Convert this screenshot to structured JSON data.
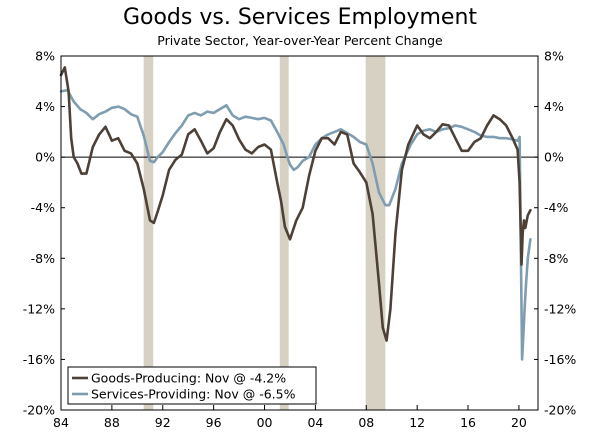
{
  "chart_data": {
    "type": "line",
    "title": "Goods vs. Services Employment",
    "subtitle": "Private Sector, Year-over-Year Percent Change",
    "xlim": [
      1984,
      2021.5
    ],
    "ylim": [
      -20,
      8
    ],
    "y_ticks": [
      8,
      4,
      0,
      -4,
      -8,
      -12,
      -16,
      -20
    ],
    "y_tick_labels_left": [
      "8%",
      "4%",
      "0%",
      "-4%",
      "-8%",
      "-12%",
      "-16%",
      "-20%"
    ],
    "y_tick_labels_right": [
      "8%",
      "4%",
      "0%",
      "-4%",
      "-8%",
      "-12%",
      "-16%",
      "-20%"
    ],
    "x_ticks": [
      1984,
      1988,
      1992,
      1996,
      2000,
      2004,
      2008,
      2012,
      2016,
      2020
    ],
    "x_tick_labels": [
      "84",
      "88",
      "92",
      "96",
      "00",
      "04",
      "08",
      "12",
      "16",
      "20"
    ],
    "recessions": [
      [
        1990.5,
        1991.25
      ],
      [
        2001.2,
        2001.9
      ],
      [
        2007.95,
        2009.5
      ]
    ],
    "legend": {
      "placement": "bottom-left",
      "entries": [
        "Goods-Producing: Nov @ -4.2%",
        "Services-Providing: Nov @ -6.5%"
      ]
    },
    "series": [
      {
        "name": "Goods-Producing",
        "color": "#4d4037",
        "x": [
          1984.0,
          1984.3,
          1984.6,
          1984.8,
          1985.0,
          1985.3,
          1985.6,
          1986.0,
          1986.5,
          1987.0,
          1987.5,
          1988.0,
          1988.5,
          1989.0,
          1989.5,
          1990.0,
          1990.5,
          1991.0,
          1991.3,
          1991.6,
          1992.0,
          1992.5,
          1993.0,
          1993.5,
          1994.0,
          1994.5,
          1995.0,
          1995.5,
          1996.0,
          1996.5,
          1997.0,
          1997.5,
          1998.0,
          1998.5,
          1999.0,
          1999.5,
          2000.0,
          2000.5,
          2001.0,
          2001.3,
          2001.6,
          2002.0,
          2002.5,
          2003.0,
          2003.5,
          2004.0,
          2004.5,
          2005.0,
          2005.5,
          2006.0,
          2006.5,
          2007.0,
          2007.5,
          2008.0,
          2008.5,
          2009.0,
          2009.3,
          2009.6,
          2009.9,
          2010.3,
          2010.8,
          2011.3,
          2012.0,
          2012.5,
          2013.0,
          2013.5,
          2014.0,
          2014.5,
          2015.0,
          2015.5,
          2016.0,
          2016.5,
          2017.0,
          2017.5,
          2018.0,
          2018.5,
          2019.0,
          2019.5,
          2019.9,
          2020.05,
          2020.2,
          2020.3,
          2020.4,
          2020.5,
          2020.7,
          2020.9
        ],
        "values": [
          6.5,
          7.1,
          5.2,
          1.5,
          0.0,
          -0.5,
          -1.3,
          -1.3,
          0.8,
          1.8,
          2.4,
          1.3,
          1.5,
          0.5,
          0.3,
          -0.5,
          -2.5,
          -5.0,
          -5.2,
          -4.3,
          -3.0,
          -1.0,
          -0.2,
          0.2,
          1.8,
          2.2,
          1.3,
          0.3,
          0.7,
          2.0,
          3.0,
          2.5,
          1.4,
          0.6,
          0.3,
          0.8,
          1.0,
          0.6,
          -2.0,
          -3.5,
          -5.5,
          -6.5,
          -5.0,
          -4.0,
          -1.5,
          0.5,
          1.5,
          1.5,
          1.0,
          2.0,
          1.8,
          -0.5,
          -1.2,
          -2.0,
          -4.5,
          -10.0,
          -13.5,
          -14.5,
          -12.0,
          -6.0,
          -1.0,
          1.0,
          2.5,
          1.8,
          1.5,
          2.0,
          2.6,
          2.5,
          1.5,
          0.5,
          0.5,
          1.2,
          1.5,
          2.5,
          3.3,
          3.0,
          2.5,
          1.5,
          0.6,
          -2.0,
          -8.5,
          -6.0,
          -5.0,
          -5.6,
          -4.6,
          -4.2
        ]
      },
      {
        "name": "Services-Providing",
        "color": "#7f9db0",
        "x": [
          1984.0,
          1984.5,
          1985.0,
          1985.5,
          1986.0,
          1986.5,
          1987.0,
          1987.5,
          1988.0,
          1988.5,
          1989.0,
          1989.5,
          1990.0,
          1990.5,
          1990.8,
          1991.0,
          1991.3,
          1991.6,
          1992.0,
          1992.5,
          1993.0,
          1993.5,
          1994.0,
          1994.5,
          1995.0,
          1995.5,
          1996.0,
          1996.5,
          1997.0,
          1997.5,
          1998.0,
          1998.5,
          1999.0,
          1999.5,
          2000.0,
          2000.5,
          2001.0,
          2001.5,
          2001.8,
          2002.0,
          2002.3,
          2002.6,
          2003.0,
          2003.5,
          2004.0,
          2004.5,
          2005.0,
          2005.5,
          2006.0,
          2006.5,
          2007.0,
          2007.5,
          2008.0,
          2008.5,
          2009.0,
          2009.5,
          2009.8,
          2010.3,
          2010.8,
          2011.5,
          2012.0,
          2012.5,
          2013.0,
          2013.5,
          2014.0,
          2014.5,
          2015.0,
          2015.5,
          2016.0,
          2016.5,
          2017.0,
          2017.5,
          2018.0,
          2018.5,
          2019.0,
          2019.5,
          2019.9,
          2020.05,
          2020.15,
          2020.25,
          2020.35,
          2020.45,
          2020.55,
          2020.7,
          2020.9
        ],
        "values": [
          5.2,
          5.3,
          4.4,
          3.8,
          3.5,
          3.0,
          3.4,
          3.6,
          3.9,
          4.0,
          3.8,
          3.4,
          3.2,
          1.7,
          0.5,
          -0.3,
          -0.4,
          0.0,
          0.4,
          1.2,
          1.9,
          2.5,
          3.3,
          3.5,
          3.3,
          3.6,
          3.5,
          3.8,
          4.1,
          3.3,
          3.0,
          3.2,
          3.1,
          3.0,
          3.1,
          2.9,
          2.0,
          1.0,
          0.0,
          -0.6,
          -1.0,
          -0.8,
          -0.3,
          0.0,
          1.0,
          1.5,
          1.8,
          2.0,
          2.2,
          1.9,
          1.6,
          1.2,
          1.0,
          -0.5,
          -2.8,
          -3.8,
          -3.8,
          -2.5,
          -0.5,
          1.0,
          1.8,
          2.1,
          2.2,
          2.0,
          2.2,
          2.3,
          2.5,
          2.4,
          2.2,
          2.0,
          1.7,
          1.6,
          1.6,
          1.5,
          1.5,
          1.4,
          1.3,
          1.6,
          -7.0,
          -16.0,
          -14.0,
          -12.0,
          -10.2,
          -8.0,
          -6.5
        ]
      }
    ]
  }
}
